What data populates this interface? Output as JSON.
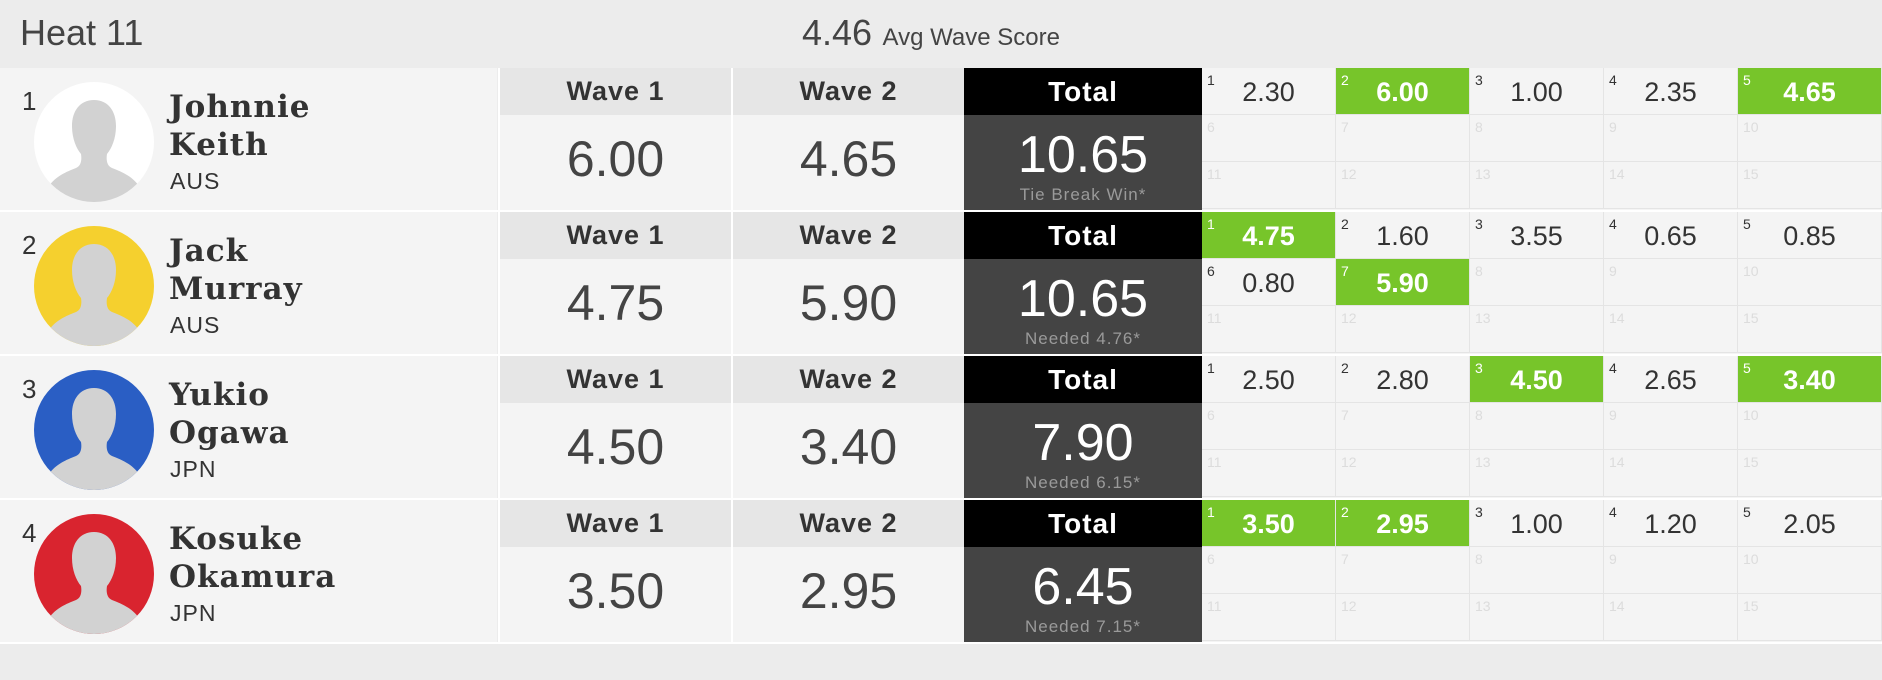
{
  "heat": {
    "title": "Heat 11",
    "avg_wave_score": "4.46",
    "avg_label": "Avg Wave Score"
  },
  "colors": {
    "best_wave": "#77c52a",
    "total_header": "#000000",
    "total_body": "#444444"
  },
  "labels": {
    "wave1": "Wave 1",
    "wave2": "Wave 2",
    "total": "Total"
  },
  "surfers": [
    {
      "rank": "1",
      "first_name": "Johnnie",
      "last_name": "Keith",
      "country": "AUS",
      "jersey_color": "#ffffff",
      "wave1": "6.00",
      "wave2": "4.65",
      "total": "10.65",
      "note": "Tie Break Win*",
      "waves": [
        {
          "n": "1",
          "score": "2.30",
          "best": false
        },
        {
          "n": "2",
          "score": "6.00",
          "best": true
        },
        {
          "n": "3",
          "score": "1.00",
          "best": false
        },
        {
          "n": "4",
          "score": "2.35",
          "best": false
        },
        {
          "n": "5",
          "score": "4.65",
          "best": true
        },
        {
          "n": "6",
          "score": "",
          "best": false
        },
        {
          "n": "7",
          "score": "",
          "best": false
        },
        {
          "n": "8",
          "score": "",
          "best": false
        },
        {
          "n": "9",
          "score": "",
          "best": false
        },
        {
          "n": "10",
          "score": "",
          "best": false
        },
        {
          "n": "11",
          "score": "",
          "best": false
        },
        {
          "n": "12",
          "score": "",
          "best": false
        },
        {
          "n": "13",
          "score": "",
          "best": false
        },
        {
          "n": "14",
          "score": "",
          "best": false
        },
        {
          "n": "15",
          "score": "",
          "best": false
        }
      ]
    },
    {
      "rank": "2",
      "first_name": "Jack",
      "last_name": "Murray",
      "country": "AUS",
      "jersey_color": "#f5d02e",
      "wave1": "4.75",
      "wave2": "5.90",
      "total": "10.65",
      "note": "Needed 4.76*",
      "waves": [
        {
          "n": "1",
          "score": "4.75",
          "best": true
        },
        {
          "n": "2",
          "score": "1.60",
          "best": false
        },
        {
          "n": "3",
          "score": "3.55",
          "best": false
        },
        {
          "n": "4",
          "score": "0.65",
          "best": false
        },
        {
          "n": "5",
          "score": "0.85",
          "best": false
        },
        {
          "n": "6",
          "score": "0.80",
          "best": false
        },
        {
          "n": "7",
          "score": "5.90",
          "best": true
        },
        {
          "n": "8",
          "score": "",
          "best": false
        },
        {
          "n": "9",
          "score": "",
          "best": false
        },
        {
          "n": "10",
          "score": "",
          "best": false
        },
        {
          "n": "11",
          "score": "",
          "best": false
        },
        {
          "n": "12",
          "score": "",
          "best": false
        },
        {
          "n": "13",
          "score": "",
          "best": false
        },
        {
          "n": "14",
          "score": "",
          "best": false
        },
        {
          "n": "15",
          "score": "",
          "best": false
        }
      ]
    },
    {
      "rank": "3",
      "first_name": "Yukio",
      "last_name": "Ogawa",
      "country": "JPN",
      "jersey_color": "#2a5ec4",
      "wave1": "4.50",
      "wave2": "3.40",
      "total": "7.90",
      "note": "Needed 6.15*",
      "waves": [
        {
          "n": "1",
          "score": "2.50",
          "best": false
        },
        {
          "n": "2",
          "score": "2.80",
          "best": false
        },
        {
          "n": "3",
          "score": "4.50",
          "best": true
        },
        {
          "n": "4",
          "score": "2.65",
          "best": false
        },
        {
          "n": "5",
          "score": "3.40",
          "best": true
        },
        {
          "n": "6",
          "score": "",
          "best": false
        },
        {
          "n": "7",
          "score": "",
          "best": false
        },
        {
          "n": "8",
          "score": "",
          "best": false
        },
        {
          "n": "9",
          "score": "",
          "best": false
        },
        {
          "n": "10",
          "score": "",
          "best": false
        },
        {
          "n": "11",
          "score": "",
          "best": false
        },
        {
          "n": "12",
          "score": "",
          "best": false
        },
        {
          "n": "13",
          "score": "",
          "best": false
        },
        {
          "n": "14",
          "score": "",
          "best": false
        },
        {
          "n": "15",
          "score": "",
          "best": false
        }
      ]
    },
    {
      "rank": "4",
      "first_name": "Kosuke",
      "last_name": "Okamura",
      "country": "JPN",
      "jersey_color": "#d9242f",
      "wave1": "3.50",
      "wave2": "2.95",
      "total": "6.45",
      "note": "Needed 7.15*",
      "waves": [
        {
          "n": "1",
          "score": "3.50",
          "best": true
        },
        {
          "n": "2",
          "score": "2.95",
          "best": true
        },
        {
          "n": "3",
          "score": "1.00",
          "best": false
        },
        {
          "n": "4",
          "score": "1.20",
          "best": false
        },
        {
          "n": "5",
          "score": "2.05",
          "best": false
        },
        {
          "n": "6",
          "score": "",
          "best": false
        },
        {
          "n": "7",
          "score": "",
          "best": false
        },
        {
          "n": "8",
          "score": "",
          "best": false
        },
        {
          "n": "9",
          "score": "",
          "best": false
        },
        {
          "n": "10",
          "score": "",
          "best": false
        },
        {
          "n": "11",
          "score": "",
          "best": false
        },
        {
          "n": "12",
          "score": "",
          "best": false
        },
        {
          "n": "13",
          "score": "",
          "best": false
        },
        {
          "n": "14",
          "score": "",
          "best": false
        },
        {
          "n": "15",
          "score": "",
          "best": false
        }
      ]
    }
  ]
}
